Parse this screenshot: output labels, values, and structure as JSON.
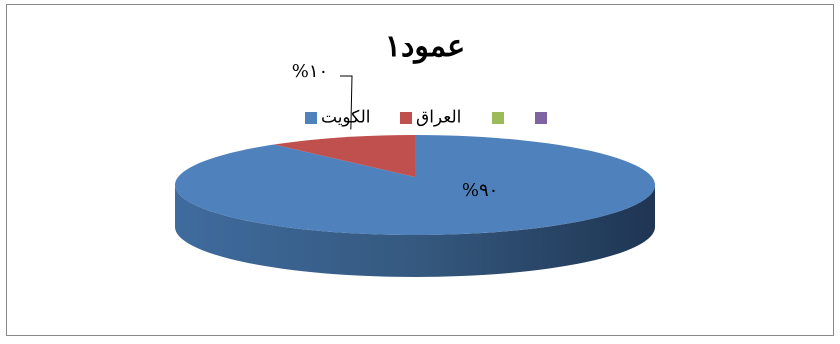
{
  "chart_data": {
    "type": "pie3d",
    "title": "عمود١",
    "categories": [
      "الكويت",
      "العراق",
      null,
      null
    ],
    "values": [
      90,
      10,
      null,
      null
    ],
    "value_labels": [
      "%٩٠",
      "%١٠",
      null,
      null
    ],
    "colors": [
      "#4f81bd",
      "#c0504d",
      "#9bbb59",
      "#8064a2"
    ],
    "legend": "top"
  }
}
